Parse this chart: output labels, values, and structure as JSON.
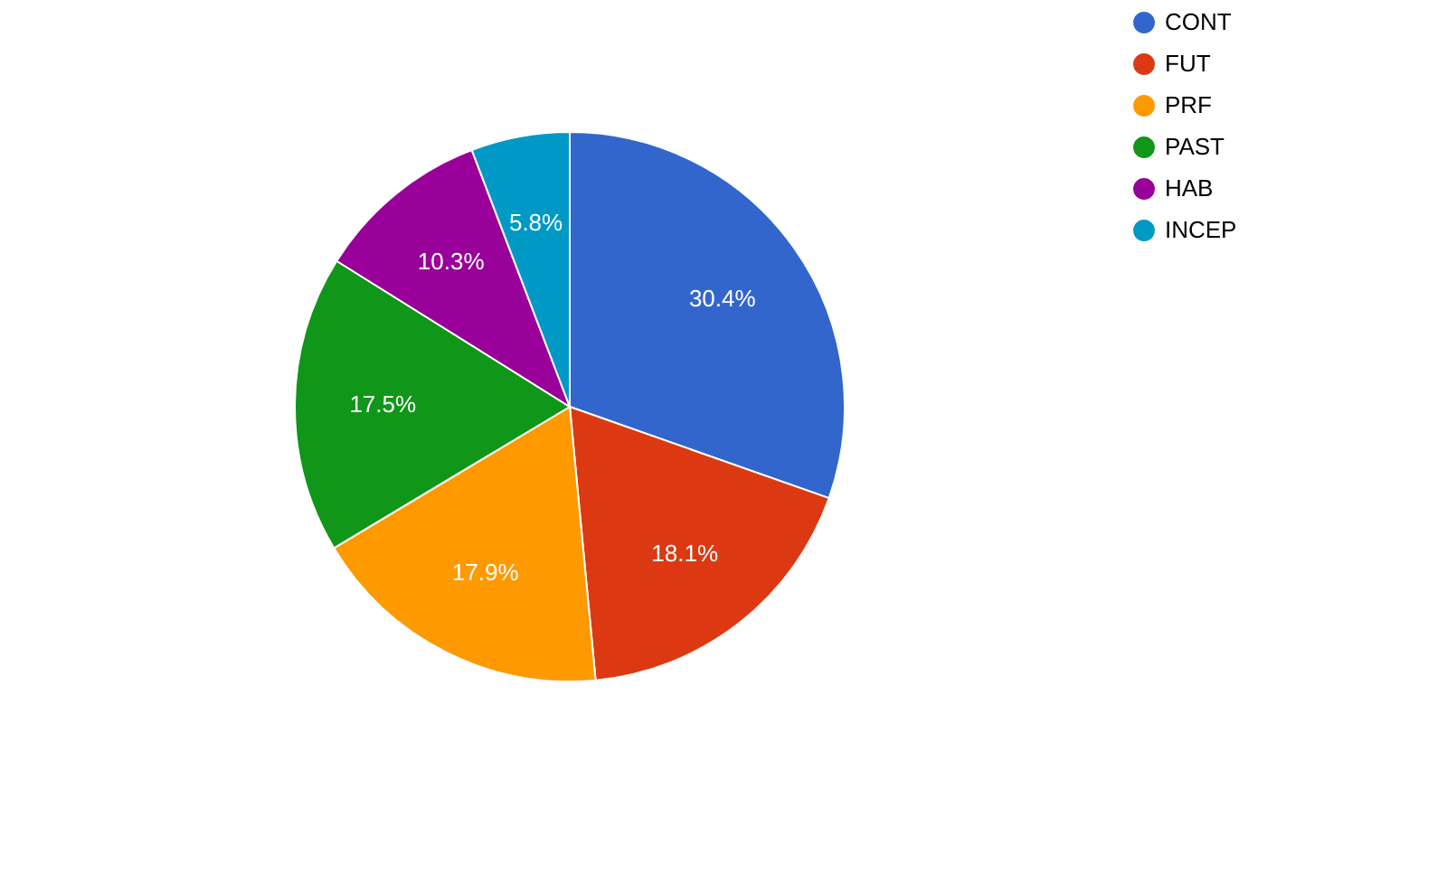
{
  "chart_data": {
    "type": "pie",
    "categories": [
      "CONT",
      "FUT",
      "PRF",
      "PAST",
      "HAB",
      "INCEP"
    ],
    "values": [
      30.4,
      18.1,
      17.9,
      17.5,
      10.3,
      5.8
    ],
    "colors": [
      "#3366cc",
      "#dc3912",
      "#ff9900",
      "#109618",
      "#990099",
      "#0099c6"
    ],
    "value_labels": [
      "30.4%",
      "18.1%",
      "17.9%",
      "17.5%",
      "10.3%",
      "5.8%"
    ],
    "legend": "right"
  }
}
